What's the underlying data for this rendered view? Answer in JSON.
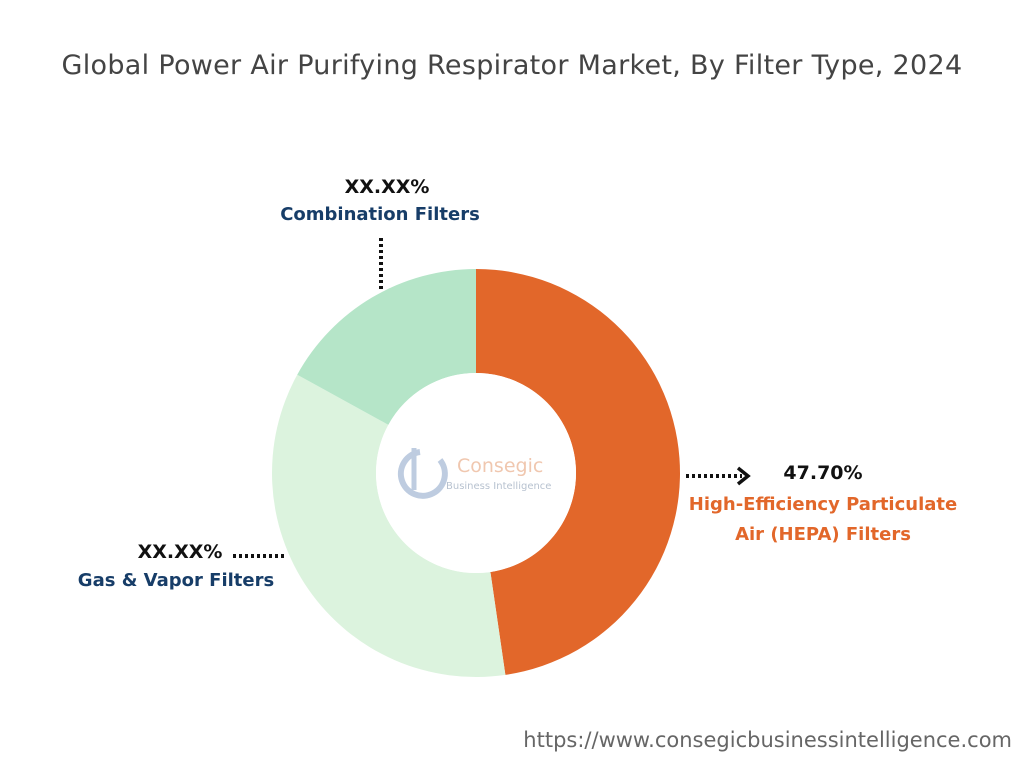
{
  "chart_data": {
    "type": "pie",
    "title": "Global Power Air Purifying Respirator Market, By Filter Type, 2024",
    "categories": [
      "High-Efficiency Particulate Air (HEPA) Filters",
      "Gas & Vapor Filters",
      "Combination Filters"
    ],
    "values": [
      47.7,
      35.3,
      17.0
    ],
    "value_labels": [
      "47.70%",
      "XX.XX%",
      "XX.XX%"
    ],
    "colors": [
      "#e2672a",
      "#dcf3de",
      "#b5e5c8"
    ],
    "label_colors": [
      "#e2672a",
      "#173d68",
      "#173d68"
    ]
  },
  "watermark": [
    "Consegic",
    "Business Intelligence"
  ],
  "source": "https://www.consegicbusinessintelligence.com"
}
